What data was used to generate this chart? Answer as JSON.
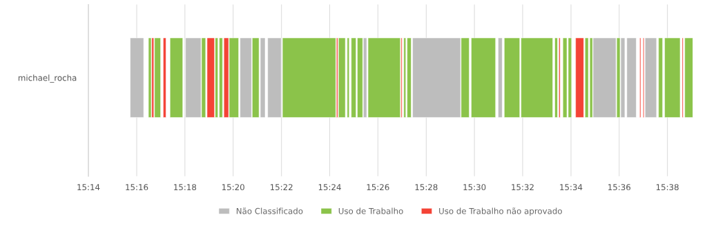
{
  "chart_data": {
    "type": "bar",
    "orientation": "horizontal",
    "categories": [
      "michael_rocha"
    ],
    "series": [
      {
        "name": "Não Classificado",
        "color": "#bdbdbd",
        "base": [
          15.2622
        ],
        "values": [
          0.0093
        ]
      },
      {
        "color": "#bdbdbd",
        "base": [
          15.3004
        ],
        "values": [
          0.0107
        ]
      },
      {
        "color": "#bdbdbd",
        "base": [
          15.3381
        ],
        "values": [
          0.0079
        ]
      },
      {
        "color": "#bdbdbd",
        "base": [
          15.3521
        ],
        "values": [
          0.0033
        ]
      },
      {
        "color": "#bdbdbd",
        "base": [
          15.3572
        ],
        "values": [
          0.0093
        ]
      },
      {
        "color": "#bdbdbd",
        "base": [
          15.4233
        ],
        "values": [
          0.0023
        ]
      },
      {
        "color": "#bdbdbd",
        "base": [
          15.4573
        ],
        "values": [
          0.0331
        ]
      },
      {
        "color": "#bdbdbd",
        "base": [
          15.5164
        ],
        "values": [
          0.0028
        ]
      },
      {
        "color": "#bdbdbd",
        "base": [
          15.582
        ],
        "values": [
          0.0158
        ]
      },
      {
        "color": "#bdbdbd",
        "base": [
          15.6011
        ],
        "values": [
          0.0028
        ]
      },
      {
        "color": "#bdbdbd",
        "base": [
          15.6053
        ],
        "values": [
          0.0065
        ]
      },
      {
        "color": "#bdbdbd",
        "base": [
          15.6179
        ],
        "values": [
          0.0079
        ]
      },
      {
        "name": "Uso de Trabalho",
        "color": "#8bc34a",
        "base": [
          15.2748
        ],
        "values": [
          0.0019
        ]
      },
      {
        "color": "#8bc34a",
        "base": [
          15.279
        ],
        "values": [
          0.0042
        ]
      },
      {
        "color": "#8bc34a",
        "base": [
          15.2897
        ],
        "values": [
          0.0088
        ]
      },
      {
        "color": "#8bc34a",
        "base": [
          15.3115
        ],
        "values": [
          0.0028
        ]
      },
      {
        "color": "#8bc34a",
        "base": [
          15.3209
        ],
        "values": [
          0.0019
        ]
      },
      {
        "color": "#8bc34a",
        "base": [
          15.3237
        ],
        "values": [
          0.0023
        ]
      },
      {
        "color": "#8bc34a",
        "base": [
          15.3306
        ],
        "values": [
          0.0065
        ]
      },
      {
        "color": "#8bc34a",
        "base": [
          15.3465
        ],
        "values": [
          0.0047
        ]
      },
      {
        "color": "#8bc34a",
        "base": [
          15.3674
        ],
        "values": [
          0.0368
        ]
      },
      {
        "color": "#8bc34a",
        "base": [
          15.4061
        ],
        "values": [
          0.0047
        ]
      },
      {
        "color": "#8bc34a",
        "base": [
          15.4121
        ],
        "values": [
          0.0014
        ]
      },
      {
        "color": "#8bc34a",
        "base": [
          15.4149
        ],
        "values": [
          0.0033
        ]
      },
      {
        "color": "#8bc34a",
        "base": [
          15.4191
        ],
        "values": [
          0.0037
        ]
      },
      {
        "color": "#8bc34a",
        "base": [
          15.4265
        ],
        "values": [
          0.0223
        ]
      },
      {
        "color": "#8bc34a",
        "base": [
          15.4512
        ],
        "values": [
          0.0014
        ]
      },
      {
        "color": "#8bc34a",
        "base": [
          15.4535
        ],
        "values": [
          0.0028
        ]
      },
      {
        "color": "#8bc34a",
        "base": [
          15.4908
        ],
        "values": [
          0.0056
        ]
      },
      {
        "color": "#8bc34a",
        "base": [
          15.4978
        ],
        "values": [
          0.0168
        ]
      },
      {
        "color": "#8bc34a",
        "base": [
          15.5206
        ],
        "values": [
          0.0107
        ]
      },
      {
        "color": "#8bc34a",
        "base": [
          15.5322
        ],
        "values": [
          0.0219
        ]
      },
      {
        "color": "#8bc34a",
        "base": [
          15.5555
        ],
        "values": [
          0.0019
        ]
      },
      {
        "color": "#8bc34a",
        "base": [
          15.5611
        ],
        "values": [
          0.0028
        ]
      },
      {
        "color": "#8bc34a",
        "base": [
          15.5648
        ],
        "values": [
          0.0023
        ]
      },
      {
        "color": "#8bc34a",
        "base": [
          15.5764
        ],
        "values": [
          0.0023
        ]
      },
      {
        "color": "#8bc34a",
        "base": [
          15.5797
        ],
        "values": [
          0.0019
        ]
      },
      {
        "color": "#8bc34a",
        "base": [
          15.5983
        ],
        "values": [
          0.0023
        ]
      },
      {
        "color": "#8bc34a",
        "base": [
          15.6272
        ],
        "values": [
          0.0028
        ]
      },
      {
        "color": "#8bc34a",
        "base": [
          15.6314
        ],
        "values": [
          0.0107
        ]
      },
      {
        "color": "#8bc34a",
        "base": [
          15.6453
        ],
        "values": [
          0.0056
        ]
      },
      {
        "name": "Uso de Trabalho não aprovado",
        "color": "#f44336",
        "base": [
          15.2771
        ],
        "values": [
          0.0014
        ]
      },
      {
        "color": "#f44336",
        "base": [
          15.285
        ],
        "values": [
          0.0019
        ]
      },
      {
        "color": "#f44336",
        "base": [
          15.3153
        ],
        "values": [
          0.0051
        ]
      },
      {
        "color": "#f44336",
        "base": [
          15.3269
        ],
        "values": [
          0.0033
        ]
      },
      {
        "color": "#f44336",
        "base": [
          15.4047
        ],
        "values": [
          0.0009
        ]
      },
      {
        "color": "#f44336",
        "base": [
          15.4493
        ],
        "values": [
          0.0007
        ]
      },
      {
        "color": "#f44336",
        "base": [
          15.5583
        ],
        "values": [
          0.0009
        ]
      },
      {
        "color": "#f44336",
        "base": [
          15.5699
        ],
        "values": [
          0.0056
        ]
      },
      {
        "color": "#f44336",
        "base": [
          15.6142
        ],
        "values": [
          0.0007
        ]
      },
      {
        "color": "#f44336",
        "base": [
          15.6165
        ],
        "values": [
          0.0007
        ]
      },
      {
        "color": "#f44336",
        "base": [
          15.6435
        ],
        "values": [
          0.0007
        ]
      }
    ],
    "xlim": [
      15.2333,
      15.6509
    ],
    "xticks": [
      {
        "value": 15.2333,
        "label": "15:14"
      },
      {
        "value": 15.2667,
        "label": "15:16"
      },
      {
        "value": 15.3,
        "label": "15:18"
      },
      {
        "value": 15.3333,
        "label": "15:20"
      },
      {
        "value": 15.3667,
        "label": "15:22"
      },
      {
        "value": 15.4,
        "label": "15:24"
      },
      {
        "value": 15.4333,
        "label": "15:26"
      },
      {
        "value": 15.4667,
        "label": "15:28"
      },
      {
        "value": 15.5,
        "label": "15:30"
      },
      {
        "value": 15.5333,
        "label": "15:32"
      },
      {
        "value": 15.5667,
        "label": "15:34"
      },
      {
        "value": 15.6,
        "label": "15:36"
      },
      {
        "value": 15.6333,
        "label": "15:38"
      }
    ],
    "grid": "x",
    "legend": "bottom"
  }
}
